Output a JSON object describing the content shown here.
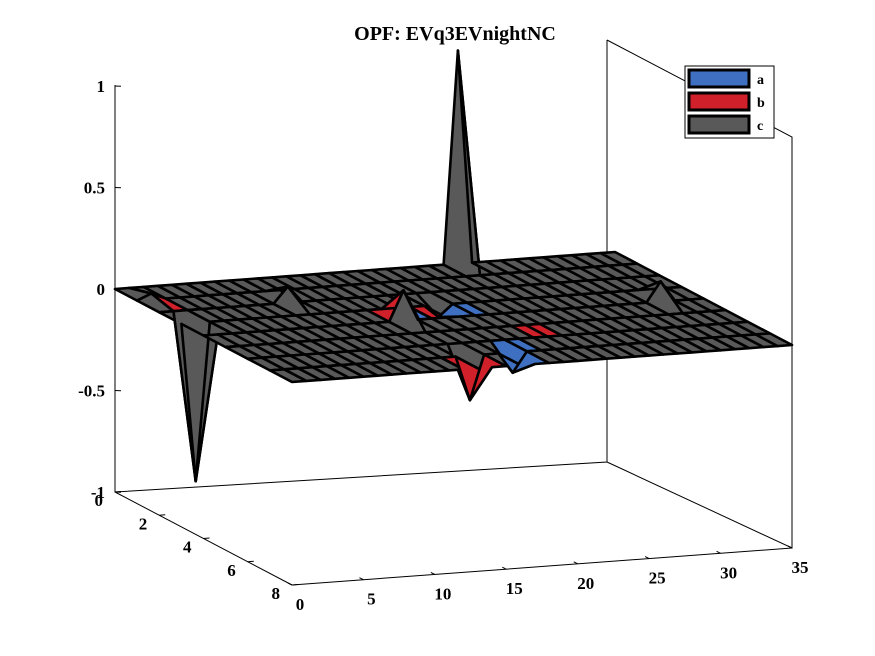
{
  "chart_data": {
    "type": "surface3d",
    "title": "OPF: EVq3EVnightNC",
    "xlabel": "",
    "ylabel": "",
    "zlabel": "",
    "xlim": [
      0,
      35
    ],
    "ylim": [
      0,
      8
    ],
    "zlim": [
      -1,
      1
    ],
    "xticks": [
      "0",
      "5",
      "10",
      "15",
      "20",
      "25",
      "30",
      "35"
    ],
    "yticks": [
      "0",
      "2",
      "4",
      "6",
      "8"
    ],
    "zticks": [
      "-1",
      "-0.5",
      "0",
      "0.5",
      "1"
    ],
    "legend": {
      "position": "top-right",
      "entries": [
        "a",
        "b",
        "c"
      ]
    },
    "colors": {
      "a": "#3f6fc0",
      "b": "#d0202a",
      "c": "#595959",
      "edge": "#000000"
    },
    "grid": false,
    "series": [
      {
        "name": "a",
        "peaks": [
          {
            "x": 18,
            "y": 3,
            "z": -0.06
          },
          {
            "x": 17,
            "y": 7,
            "z": -0.1
          }
        ]
      },
      {
        "name": "b",
        "peaks": [
          {
            "x": 1,
            "y": 1,
            "z": 0.03
          },
          {
            "x": 14,
            "y": 7,
            "z": -0.22
          }
        ]
      },
      {
        "name": "c",
        "peaks": [
          {
            "x": 24,
            "y": 0,
            "z": 1.05
          },
          {
            "x": 1,
            "y": 3,
            "z": -0.78
          },
          {
            "x": 9,
            "y": 2,
            "z": 0.08
          },
          {
            "x": 14,
            "y": 4,
            "z": 0.15
          },
          {
            "x": 32,
            "y": 4,
            "z": 0.1
          }
        ]
      }
    ]
  }
}
